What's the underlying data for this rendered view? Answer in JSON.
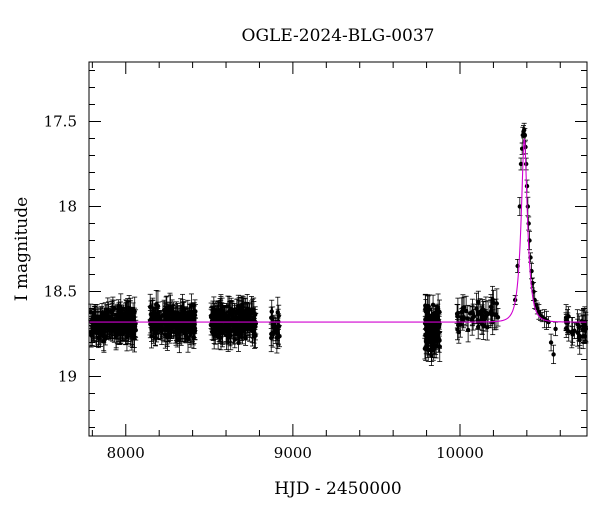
{
  "chart_data": {
    "type": "scatter",
    "title": "OGLE-2024-BLG-0037",
    "xlabel": "HJD - 2450000",
    "ylabel": "I magnitude",
    "xlim": [
      7780,
      10760
    ],
    "ylim": [
      19.35,
      17.15
    ],
    "y_inverted": true,
    "grid": false,
    "legend": "none",
    "x_ticks": [
      {
        "value": 8000,
        "label": "8000"
      },
      {
        "value": 9000,
        "label": "9000"
      },
      {
        "value": 10000,
        "label": "10000"
      }
    ],
    "y_ticks": [
      {
        "value": 17.5,
        "label": "17.5"
      },
      {
        "value": 18.0,
        "label": "18"
      },
      {
        "value": 18.5,
        "label": "18.5"
      },
      {
        "value": 19.0,
        "label": "19"
      }
    ],
    "colors": {
      "data": "#000000",
      "model": "#d000d0"
    },
    "model": {
      "baseline_mag": 18.68,
      "peak_mag": 17.6,
      "t0": 10385,
      "tE": 36
    },
    "seasons": [
      {
        "start": 7790,
        "end": 8060,
        "count": 240,
        "mean_mag": 18.69,
        "scatter": 0.06
      },
      {
        "start": 8145,
        "end": 8420,
        "count": 220,
        "mean_mag": 18.68,
        "scatter": 0.06
      },
      {
        "start": 8510,
        "end": 8780,
        "count": 220,
        "mean_mag": 18.68,
        "scatter": 0.06
      },
      {
        "start": 8870,
        "end": 8920,
        "count": 24,
        "mean_mag": 18.72,
        "scatter": 0.07
      },
      {
        "start": 9790,
        "end": 9880,
        "count": 110,
        "mean_mag": 18.72,
        "scatter": 0.1
      },
      {
        "start": 9980,
        "end": 10230,
        "count": 60,
        "mean_mag": 18.65,
        "scatter": 0.06
      },
      {
        "start": 10630,
        "end": 10755,
        "count": 30,
        "mean_mag": 18.72,
        "scatter": 0.05
      }
    ],
    "points": [
      {
        "x": 10330,
        "y": 18.55
      },
      {
        "x": 10345,
        "y": 18.35
      },
      {
        "x": 10358,
        "y": 18.0
      },
      {
        "x": 10365,
        "y": 17.75
      },
      {
        "x": 10372,
        "y": 17.66
      },
      {
        "x": 10376,
        "y": 17.58
      },
      {
        "x": 10380,
        "y": 17.56
      },
      {
        "x": 10384,
        "y": 17.55
      },
      {
        "x": 10388,
        "y": 17.58
      },
      {
        "x": 10392,
        "y": 17.65
      },
      {
        "x": 10396,
        "y": 17.75
      },
      {
        "x": 10401,
        "y": 17.88
      },
      {
        "x": 10406,
        "y": 18.0
      },
      {
        "x": 10411,
        "y": 18.1
      },
      {
        "x": 10416,
        "y": 18.2
      },
      {
        "x": 10422,
        "y": 18.3
      },
      {
        "x": 10428,
        "y": 18.38
      },
      {
        "x": 10434,
        "y": 18.45
      },
      {
        "x": 10440,
        "y": 18.5
      },
      {
        "x": 10447,
        "y": 18.55
      },
      {
        "x": 10455,
        "y": 18.58
      },
      {
        "x": 10463,
        "y": 18.6
      },
      {
        "x": 10472,
        "y": 18.62
      },
      {
        "x": 10482,
        "y": 18.64
      },
      {
        "x": 10492,
        "y": 18.65
      },
      {
        "x": 10505,
        "y": 18.66
      },
      {
        "x": 10518,
        "y": 18.67
      },
      {
        "x": 10530,
        "y": 18.68
      },
      {
        "x": 10545,
        "y": 18.8
      },
      {
        "x": 10560,
        "y": 18.87
      },
      {
        "x": 10572,
        "y": 18.72
      }
    ]
  }
}
